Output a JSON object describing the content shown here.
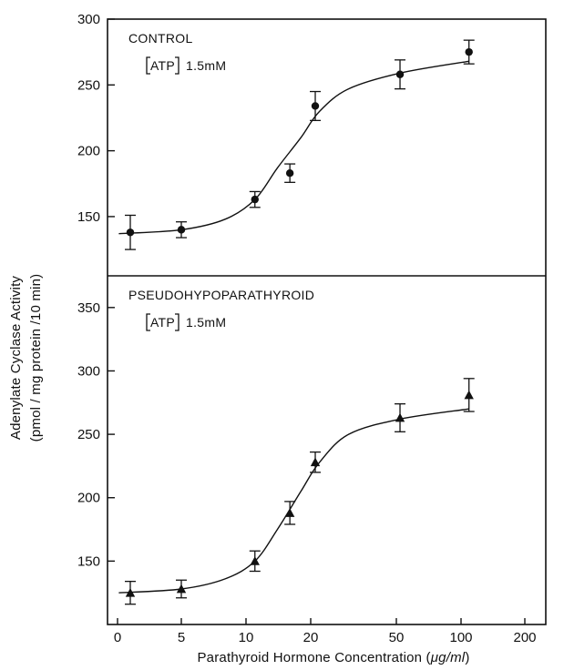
{
  "chart_data": [
    {
      "type": "scatter",
      "panel_label": "CONTROL",
      "annotation": "1.5mM",
      "bracket_text": "ATP",
      "marker": "circle",
      "x": [
        1,
        5,
        11,
        16,
        21,
        52,
        109
      ],
      "y": [
        138,
        140,
        163,
        183,
        234,
        258,
        275
      ],
      "y_err": [
        13,
        6,
        6,
        7,
        11,
        11,
        9
      ],
      "curve": [
        [
          0.1,
          137
        ],
        [
          5,
          140
        ],
        [
          8,
          148
        ],
        [
          11,
          163
        ],
        [
          14,
          187
        ],
        [
          18,
          210
        ],
        [
          22,
          230
        ],
        [
          30,
          247
        ],
        [
          52,
          259
        ],
        [
          109,
          268
        ]
      ],
      "ylim": [
        105,
        300
      ],
      "yticks": [
        150,
        200,
        250,
        300
      ]
    },
    {
      "type": "scatter",
      "panel_label": "PSEUDOHYPOPARATHYROID",
      "annotation": "1.5mM",
      "bracket_text": "ATP",
      "marker": "triangle",
      "x": [
        1,
        5,
        11,
        16,
        21,
        52,
        109
      ],
      "y": [
        125,
        128,
        150,
        188,
        228,
        263,
        281
      ],
      "y_err": [
        9,
        7,
        8,
        9,
        8,
        11,
        13
      ],
      "curve": [
        [
          0.1,
          125
        ],
        [
          5,
          128
        ],
        [
          8,
          136
        ],
        [
          11,
          150
        ],
        [
          14,
          175
        ],
        [
          18,
          205
        ],
        [
          22,
          228
        ],
        [
          30,
          250
        ],
        [
          52,
          262
        ],
        [
          109,
          270
        ]
      ],
      "ylim": [
        100,
        375
      ],
      "yticks": [
        150,
        200,
        250,
        300,
        350
      ]
    }
  ],
  "xlabel_part1": "Parathyroid Hormone Concentration (",
  "xlabel_mu": "μg/ml",
  "xlabel_part2": ")",
  "ylabel_line1": "Adenylate Cyclase Activity",
  "ylabel_line2": "(pmol / mg protein /10 min)",
  "xticks": [
    0,
    5,
    10,
    20,
    50,
    100,
    200
  ],
  "xtick_labels": [
    "0",
    "5",
    "10",
    "20",
    "50",
    "100",
    "200"
  ]
}
